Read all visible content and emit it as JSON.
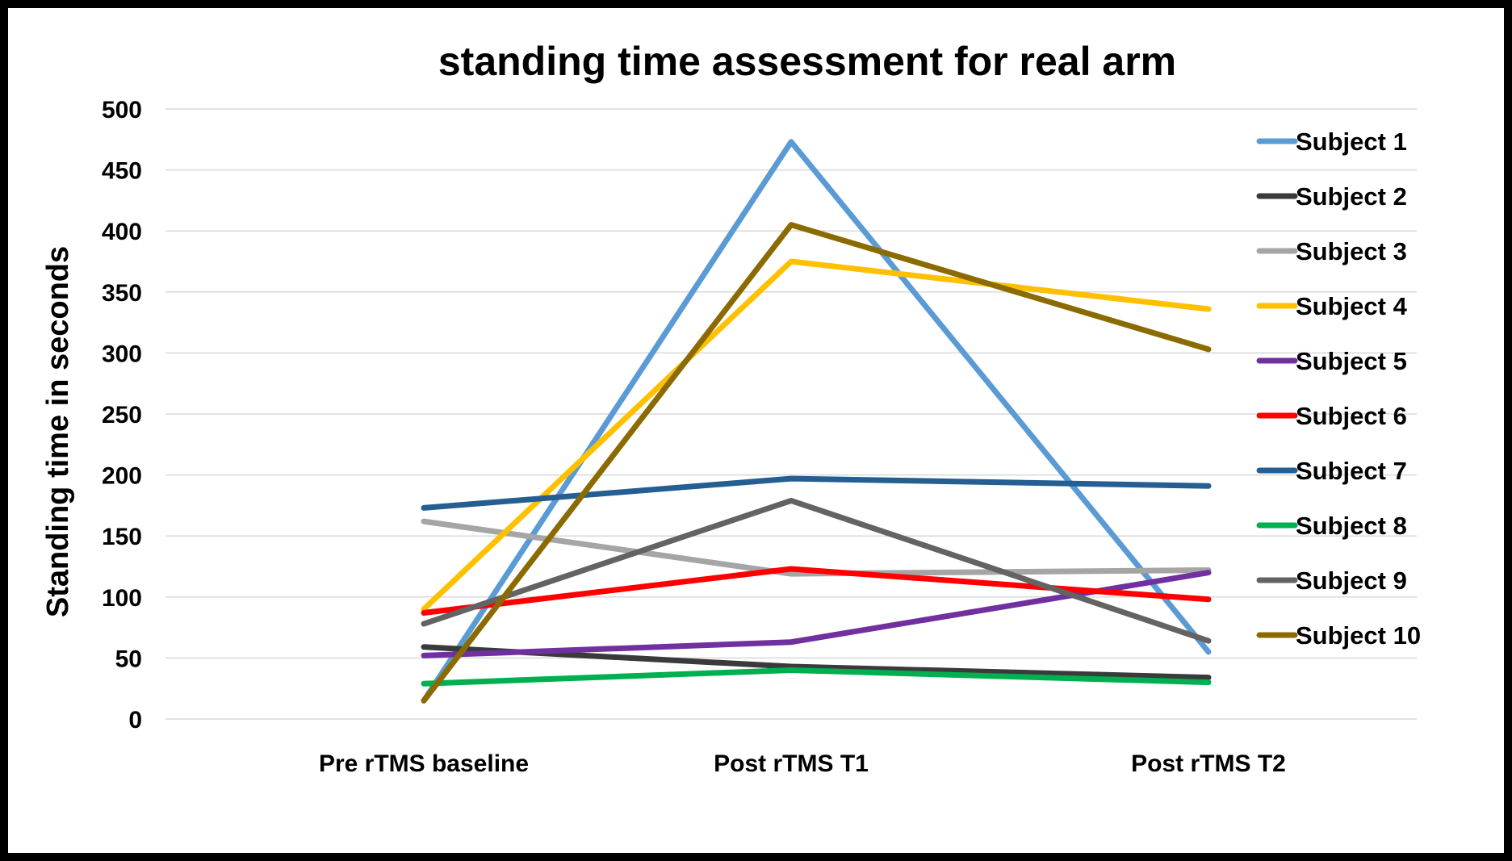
{
  "chart_data": {
    "type": "line",
    "title": "standing time assessment for real arm",
    "xlabel": "",
    "ylabel": "Standing time in seconds",
    "ylim": [
      0,
      500
    ],
    "yticks": [
      "0",
      "50",
      "100",
      "150",
      "200",
      "250",
      "300",
      "350",
      "400",
      "450",
      "500"
    ],
    "categories": [
      "Pre rTMS baseline",
      "Post rTMS T1",
      "Post rTMS T2"
    ],
    "grid": "horizontal",
    "legend": "right",
    "series": [
      {
        "name": "Subject 1",
        "color": "#5b9bd5",
        "values": [
          15,
          473,
          55
        ]
      },
      {
        "name": "Subject 2",
        "color": "#3a3a3a",
        "values": [
          59,
          43,
          34
        ]
      },
      {
        "name": "Subject 3",
        "color": "#a5a5a5",
        "values": [
          162,
          119,
          122
        ]
      },
      {
        "name": "Subject 4",
        "color": "#ffc000",
        "values": [
          90,
          375,
          336
        ]
      },
      {
        "name": "Subject 5",
        "color": "#7030a0",
        "values": [
          52,
          63,
          120
        ]
      },
      {
        "name": "Subject 6",
        "color": "#ff0000",
        "values": [
          87,
          123,
          98
        ]
      },
      {
        "name": "Subject 7",
        "color": "#255e91",
        "values": [
          173,
          197,
          191
        ]
      },
      {
        "name": "Subject 8",
        "color": "#00b050",
        "values": [
          29,
          40,
          30
        ]
      },
      {
        "name": "Subject 9",
        "color": "#636363",
        "values": [
          78,
          179,
          64
        ]
      },
      {
        "name": "Subject 10",
        "color": "#8b6b00",
        "values": [
          15,
          405,
          303
        ]
      }
    ]
  }
}
